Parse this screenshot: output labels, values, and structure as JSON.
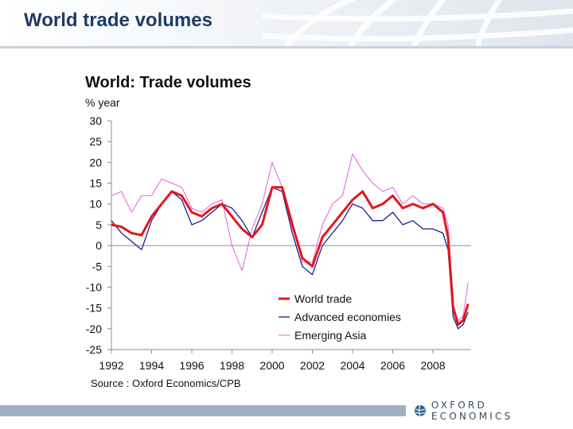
{
  "slide": {
    "title": "World trade volumes",
    "logo_text": "OXFORD ECONOMICS"
  },
  "colors": {
    "title": "#1d3b66",
    "world_trade": "#e4161b",
    "advanced": "#1c1f8c",
    "emerging_asia": "#e060e0",
    "footer_bar": "#9fb1c3"
  },
  "chart_data": {
    "type": "line",
    "title": "World: Trade volumes",
    "ylabel": "% year",
    "source": "Source : Oxford Economics/CPB",
    "ylim": [
      -25,
      30
    ],
    "xlim": [
      1992,
      2009.9
    ],
    "yticks": [
      "30",
      "25",
      "20",
      "15",
      "10",
      "5",
      "0",
      "-5",
      "-10",
      "-15",
      "-20",
      "-25"
    ],
    "xticks": [
      "1992",
      "1994",
      "1996",
      "1998",
      "2000",
      "2002",
      "2004",
      "2006",
      "2008"
    ],
    "legend_position": "bottom-right",
    "series": [
      {
        "name": "World trade",
        "color": "#e4161b",
        "x": [
          1992,
          1992.5,
          1993,
          1993.5,
          1994,
          1994.5,
          1995,
          1995.5,
          1996,
          1996.5,
          1997,
          1997.5,
          1998,
          1998.5,
          1999,
          1999.5,
          2000,
          2000.5,
          2001,
          2001.5,
          2002,
          2002.5,
          2003,
          2003.5,
          2004,
          2004.5,
          2005,
          2005.5,
          2006,
          2006.5,
          2007,
          2007.5,
          2008,
          2008.5,
          2008.75,
          2009,
          2009.25,
          2009.5,
          2009.75
        ],
        "y": [
          5,
          4.5,
          3,
          2.5,
          7,
          10,
          13,
          12,
          8,
          7,
          9,
          10,
          7,
          4,
          2,
          5,
          14,
          14,
          5,
          -3,
          -5,
          2,
          5,
          8,
          11,
          13,
          9,
          10,
          12,
          9,
          10,
          9,
          10,
          8,
          2,
          -15,
          -19,
          -18,
          -14
        ]
      },
      {
        "name": "Advanced economies",
        "color": "#1c1f8c",
        "x": [
          1992,
          1992.5,
          1993,
          1993.5,
          1994,
          1994.5,
          1995,
          1995.5,
          1996,
          1996.5,
          1997,
          1997.5,
          1998,
          1998.5,
          1999,
          1999.5,
          2000,
          2000.5,
          2001,
          2001.5,
          2002,
          2002.5,
          2003,
          2003.5,
          2004,
          2004.5,
          2005,
          2005.5,
          2006,
          2006.5,
          2007,
          2007.5,
          2008,
          2008.5,
          2008.75,
          2009,
          2009.25,
          2009.5,
          2009.75
        ],
        "y": [
          6,
          3,
          1,
          -1,
          6,
          10,
          13,
          11,
          5,
          6,
          8,
          10,
          9,
          6,
          2,
          8,
          14,
          13,
          3,
          -5,
          -7,
          0,
          3,
          6,
          10,
          9,
          6,
          6,
          8,
          5,
          6,
          4,
          4,
          3,
          -1,
          -17,
          -20,
          -19,
          -16
        ]
      },
      {
        "name": "Emerging Asia",
        "color": "#e060e0",
        "x": [
          1992,
          1992.5,
          1993,
          1993.5,
          1994,
          1994.5,
          1995,
          1995.5,
          1996,
          1996.5,
          1997,
          1997.5,
          1998,
          1998.5,
          1999,
          1999.5,
          2000,
          2000.5,
          2001,
          2001.5,
          2002,
          2002.5,
          2003,
          2003.5,
          2004,
          2004.5,
          2005,
          2005.5,
          2006,
          2006.5,
          2007,
          2007.5,
          2008,
          2008.5,
          2008.75,
          2009,
          2009.25,
          2009.5,
          2009.75
        ],
        "y": [
          12,
          13,
          8,
          12,
          12,
          16,
          15,
          14,
          9,
          8,
          10,
          11,
          0,
          -6,
          4,
          10,
          20,
          14,
          6,
          -4,
          -4,
          5,
          10,
          12,
          22,
          18,
          15,
          13,
          14,
          10,
          12,
          10,
          10,
          9,
          5,
          -14,
          -18,
          -17,
          -9
        ]
      }
    ]
  }
}
